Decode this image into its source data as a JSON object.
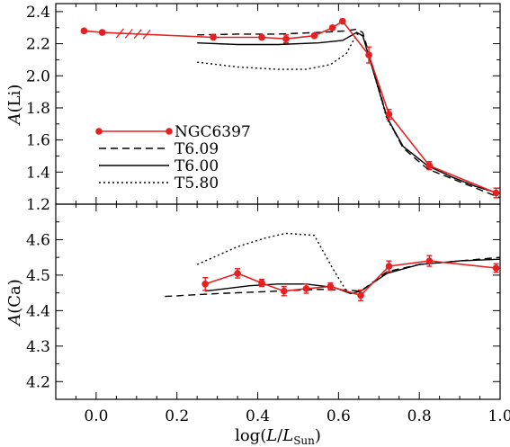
{
  "chart_data": [
    {
      "type": "line",
      "panel": "top",
      "ylabel": "A(Li)",
      "xlim": [
        -0.1,
        1.0
      ],
      "ylim": [
        1.2,
        2.45
      ],
      "xticks": [
        0.0,
        0.2,
        0.4,
        0.6,
        0.8,
        1.0
      ],
      "yticks": [
        1.2,
        1.4,
        1.6,
        1.8,
        2.0,
        2.2,
        2.4
      ],
      "ytick_labels": [
        "1.2",
        "1.4",
        "1.6",
        "1.8",
        "2.0",
        "2.2",
        "2.4"
      ],
      "legend_position": "middle-left",
      "series": [
        {
          "name": "NGC6397",
          "style": "solid",
          "color": "#e62020",
          "markers": true,
          "x": [
            -0.03,
            0.015,
            0.29,
            0.41,
            0.47,
            0.54,
            0.585,
            0.61,
            0.675,
            0.725,
            0.825,
            0.99
          ],
          "y": [
            2.28,
            2.27,
            2.24,
            2.24,
            2.23,
            2.25,
            2.3,
            2.34,
            2.13,
            1.76,
            1.44,
            1.27
          ],
          "yerr": [
            0.012,
            0.012,
            0.012,
            0.012,
            0.025,
            0.012,
            0.012,
            0.012,
            0.05,
            0.03,
            0.025,
            0.03
          ]
        },
        {
          "name": "T6.09",
          "style": "dashed",
          "color": "#000000",
          "x": [
            0.25,
            0.35,
            0.45,
            0.55,
            0.62,
            0.645,
            0.66,
            0.68,
            0.72,
            0.76,
            0.82,
            0.88,
            0.94,
            1.0
          ],
          "y": [
            2.255,
            2.26,
            2.26,
            2.27,
            2.28,
            2.29,
            2.27,
            2.1,
            1.74,
            1.55,
            1.42,
            1.36,
            1.3,
            1.24
          ]
        },
        {
          "name": "T6.00",
          "style": "solid",
          "color": "#000000",
          "x": [
            0.25,
            0.35,
            0.45,
            0.55,
            0.61,
            0.645,
            0.66,
            0.68,
            0.72,
            0.76,
            0.82,
            0.88,
            0.94,
            1.0
          ],
          "y": [
            2.205,
            2.195,
            2.195,
            2.205,
            2.22,
            2.27,
            2.25,
            2.08,
            1.74,
            1.56,
            1.44,
            1.37,
            1.31,
            1.265
          ]
        },
        {
          "name": "T5.80",
          "style": "dotted",
          "color": "#000000",
          "x": [
            0.25,
            0.35,
            0.45,
            0.52,
            0.58,
            0.62,
            0.645,
            0.66,
            0.68,
            0.72,
            0.76,
            0.82,
            0.88,
            0.94,
            1.0
          ],
          "y": [
            2.085,
            2.055,
            2.04,
            2.04,
            2.07,
            2.14,
            2.26,
            2.25,
            2.08,
            1.73,
            1.56,
            1.44,
            1.37,
            1.31,
            1.265
          ]
        }
      ]
    },
    {
      "type": "line",
      "panel": "bottom",
      "ylabel": "A(Ca)",
      "xlabel": "log(L/LSun)",
      "xlim": [
        -0.1,
        1.0
      ],
      "ylim": [
        4.15,
        4.7
      ],
      "xticks": [
        0.0,
        0.2,
        0.4,
        0.6,
        0.8,
        1.0
      ],
      "xtick_labels": [
        "0.0",
        "0.2",
        "0.4",
        "0.6",
        "0.8",
        "1.0"
      ],
      "yticks": [
        4.2,
        4.3,
        4.4,
        4.5,
        4.6
      ],
      "ytick_labels": [
        "4.2",
        "4.3",
        "4.4",
        "4.5",
        "4.6"
      ],
      "series": [
        {
          "name": "NGC6397",
          "style": "solid",
          "color": "#e62020",
          "markers": true,
          "x": [
            0.27,
            0.35,
            0.41,
            0.465,
            0.52,
            0.58,
            0.655,
            0.725,
            0.825,
            0.99
          ],
          "y": [
            4.475,
            4.505,
            4.478,
            4.455,
            4.462,
            4.468,
            4.443,
            4.525,
            4.54,
            4.52
          ],
          "yerr": [
            0.018,
            0.013,
            0.01,
            0.013,
            0.013,
            0.01,
            0.015,
            0.015,
            0.015,
            0.012
          ]
        },
        {
          "name": "T6.09",
          "style": "dashed",
          "color": "#000000",
          "x": [
            0.17,
            0.3,
            0.45,
            0.55,
            0.62,
            0.655,
            0.72,
            0.8,
            0.9,
            1.0
          ],
          "y": [
            4.44,
            4.448,
            4.455,
            4.46,
            4.458,
            4.455,
            4.51,
            4.53,
            4.54,
            4.55
          ]
        },
        {
          "name": "T6.00",
          "style": "solid",
          "color": "#000000",
          "x": [
            0.27,
            0.38,
            0.45,
            0.52,
            0.59,
            0.63,
            0.655,
            0.72,
            0.8,
            0.9,
            1.0
          ],
          "y": [
            4.455,
            4.47,
            4.475,
            4.475,
            4.465,
            4.448,
            4.455,
            4.505,
            4.53,
            4.54,
            4.545
          ]
        },
        {
          "name": "T5.80",
          "style": "dotted",
          "color": "#000000",
          "x": [
            0.25,
            0.35,
            0.42,
            0.47,
            0.54,
            0.585,
            0.62
          ],
          "y": [
            4.53,
            4.58,
            4.605,
            4.618,
            4.612,
            4.52,
            4.455
          ]
        }
      ]
    }
  ]
}
